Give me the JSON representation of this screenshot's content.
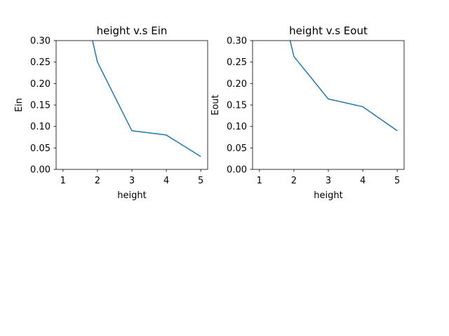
{
  "chart_data": [
    {
      "type": "line",
      "title": "height v.s Ein",
      "xlabel": "height",
      "ylabel": "Ein",
      "xlim": [
        0.8,
        5.2
      ],
      "ylim": [
        0.0,
        0.3
      ],
      "xticks": [
        1,
        2,
        3,
        4,
        5
      ],
      "yticks": [
        "0.00",
        "0.05",
        "0.10",
        "0.15",
        "0.20",
        "0.25",
        "0.30"
      ],
      "grid": false,
      "series": [
        {
          "color": "#1f77b4",
          "x": [
            1,
            2,
            3,
            4,
            5
          ],
          "y": [
            0.6,
            0.25,
            0.09,
            0.08,
            0.03
          ]
        }
      ]
    },
    {
      "type": "line",
      "title": "height v.s Eout",
      "xlabel": "height",
      "ylabel": "Eout",
      "xlim": [
        0.8,
        5.2
      ],
      "ylim": [
        0.0,
        0.3
      ],
      "xticks": [
        1,
        2,
        3,
        4,
        5
      ],
      "yticks": [
        "0.00",
        "0.05",
        "0.10",
        "0.15",
        "0.20",
        "0.25",
        "0.30"
      ],
      "grid": false,
      "series": [
        {
          "color": "#1f77b4",
          "x": [
            1,
            2,
            3,
            4,
            5
          ],
          "y": [
            0.6,
            0.263,
            0.164,
            0.146,
            0.09
          ]
        }
      ]
    }
  ]
}
